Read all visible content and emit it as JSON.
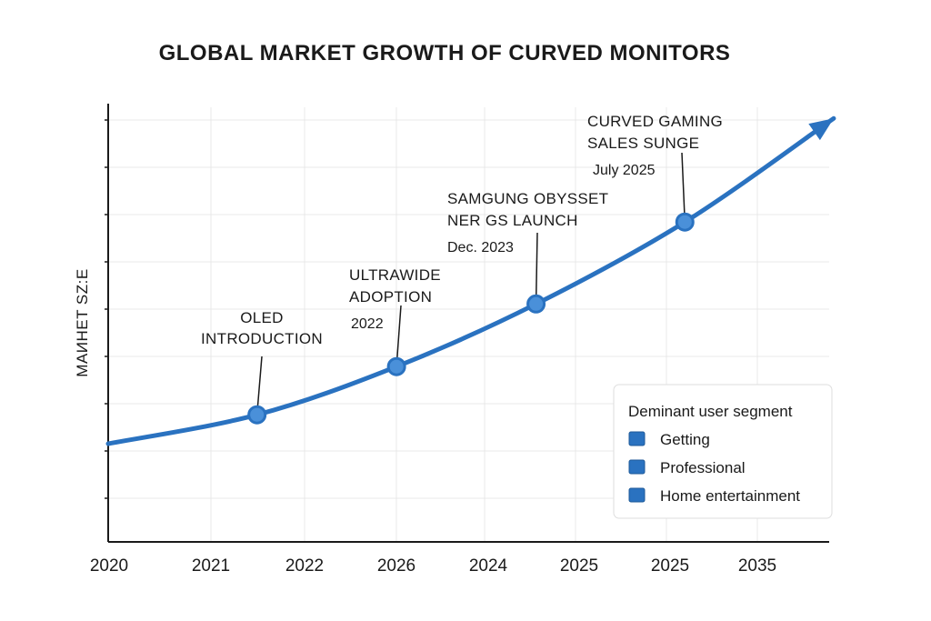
{
  "chart_data": {
    "type": "line",
    "title": "GLOBAL MARKET GROWTH OF CURVED MONITORS",
    "ylabel": "MAИHET SZ:E",
    "xlabel": "",
    "x_tick_labels": [
      "2020",
      "2021",
      "2022",
      "2026",
      "2024",
      "2025",
      "2025",
      "2035"
    ],
    "grid": true,
    "colors": {
      "line": "#2a72c0",
      "marker_fill": "#4a90d9",
      "axis": "#1a1a1a"
    },
    "series": [
      {
        "points": [
          {
            "x": 0,
            "y": 0
          },
          {
            "x": 1.6,
            "y": 0.6
          },
          {
            "x": 3.1,
            "y": 1.6
          },
          {
            "x": 4.6,
            "y": 2.9
          },
          {
            "x": 6.2,
            "y": 4.6
          },
          {
            "x": 7.8,
            "y": 6.75
          }
        ]
      }
    ],
    "annotations": [
      {
        "point_index": 1,
        "lines": [
          "OLED",
          "INTRODUCTION"
        ],
        "date": ""
      },
      {
        "point_index": 2,
        "lines": [
          "ULTRAWIDE",
          "ADOPTION"
        ],
        "date": "2022"
      },
      {
        "point_index": 3,
        "lines": [
          "SAMGUNG OBYSSET",
          "NER GS LAUNCH"
        ],
        "date": "Dec. 2023"
      },
      {
        "point_index": 4,
        "lines": [
          "CURVED GAMING",
          "SALES SUNGE"
        ],
        "date": "July 2025"
      }
    ],
    "legend": {
      "position": "bottom-right",
      "title": "Deminant user segment",
      "items": [
        "Getting",
        "Professional",
        "Home entertainment"
      ],
      "color": "#2a72c0"
    }
  }
}
